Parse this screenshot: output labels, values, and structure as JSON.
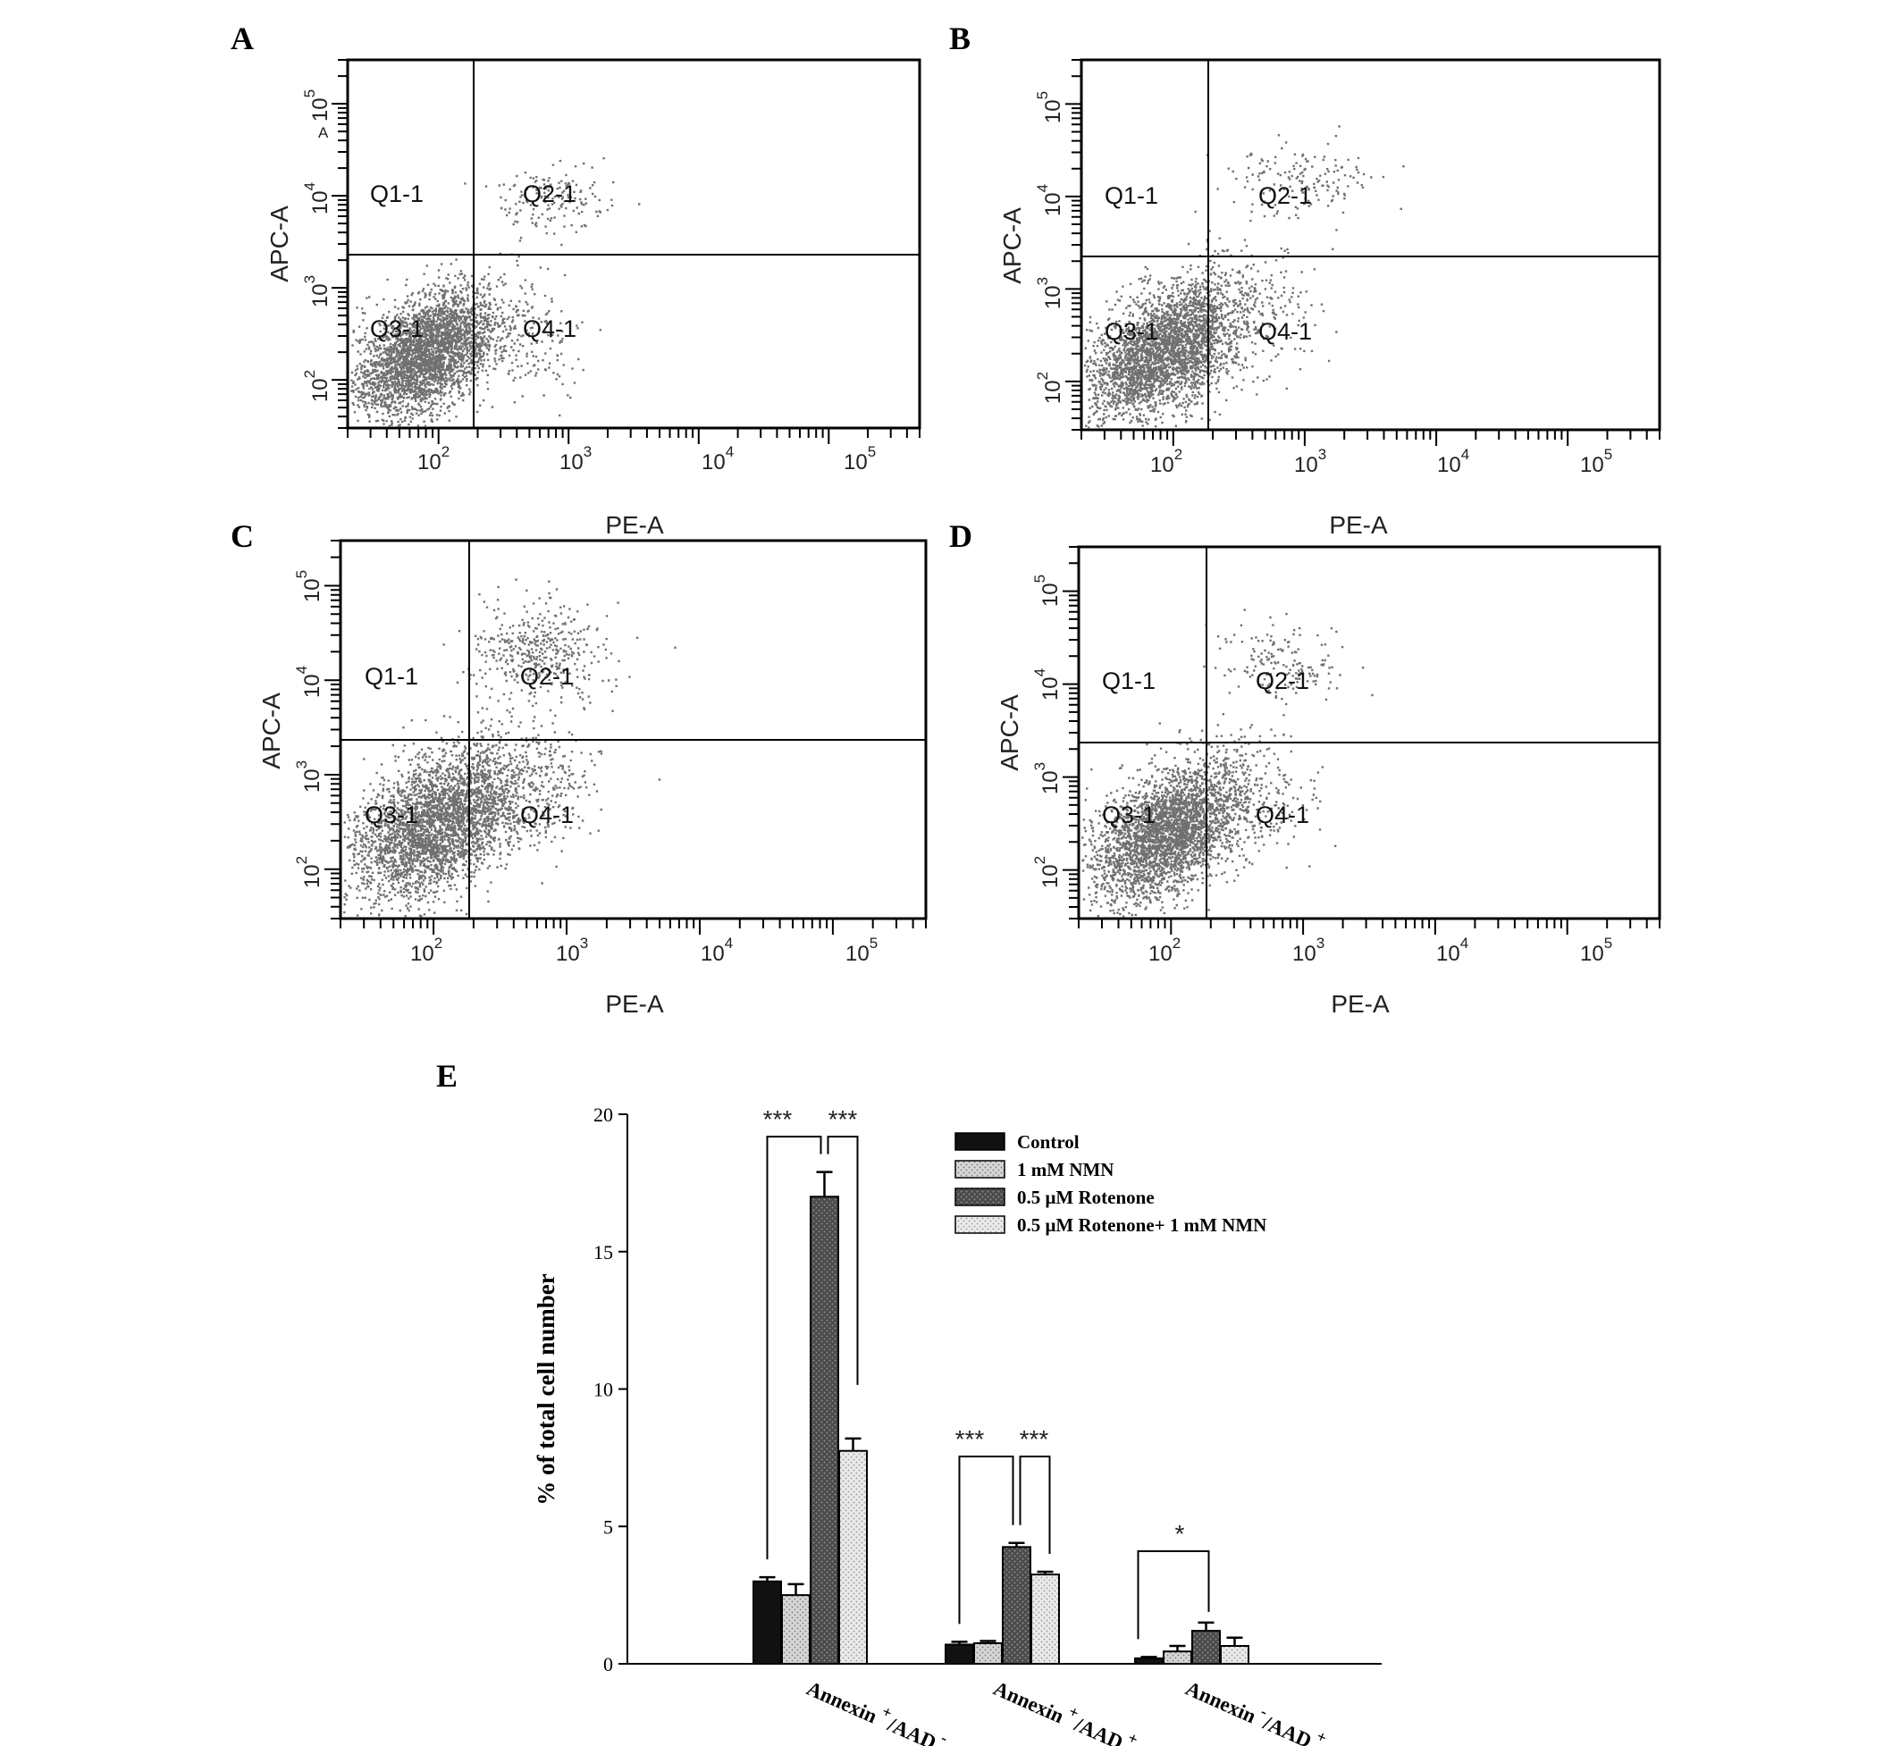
{
  "panels": [
    {
      "letter": "A",
      "x_title": "PE-A",
      "y_title": "APC-A",
      "quadrants": [
        "Q1-1",
        "Q2-1",
        "Q3-1",
        "Q4-1"
      ],
      "x_ticks": [
        {
          "base": "10",
          "exp": "2"
        },
        {
          "base": "10",
          "exp": "3"
        },
        {
          "base": "10",
          "exp": "4"
        },
        {
          "base": "10",
          "exp": "5"
        }
      ],
      "y_ticks": [
        {
          "base": "10",
          "exp": "2"
        },
        {
          "base": "10",
          "exp": "3"
        },
        {
          "base": "10",
          "exp": "4"
        },
        {
          "base": "10",
          "exp": "5"
        }
      ],
      "stray_mark": "A"
    },
    {
      "letter": "B",
      "x_title": "PE-A",
      "y_title": "APC-A",
      "quadrants": [
        "Q1-1",
        "Q2-1",
        "Q3-1",
        "Q4-1"
      ],
      "x_ticks": [
        {
          "base": "10",
          "exp": "2"
        },
        {
          "base": "10",
          "exp": "3"
        },
        {
          "base": "10",
          "exp": "4"
        },
        {
          "base": "10",
          "exp": "5"
        }
      ],
      "y_ticks": [
        {
          "base": "10",
          "exp": "2"
        },
        {
          "base": "10",
          "exp": "3"
        },
        {
          "base": "10",
          "exp": "4"
        },
        {
          "base": "10",
          "exp": "5"
        }
      ]
    },
    {
      "letter": "C",
      "x_title": "PE-A",
      "y_title": "APC-A",
      "quadrants": [
        "Q1-1",
        "Q2-1",
        "Q3-1",
        "Q4-1"
      ],
      "x_ticks": [
        {
          "base": "10",
          "exp": "2"
        },
        {
          "base": "10",
          "exp": "3"
        },
        {
          "base": "10",
          "exp": "4"
        },
        {
          "base": "10",
          "exp": "5"
        }
      ],
      "y_ticks": [
        {
          "base": "10",
          "exp": "2"
        },
        {
          "base": "10",
          "exp": "3"
        },
        {
          "base": "10",
          "exp": "4"
        },
        {
          "base": "10",
          "exp": "5"
        }
      ]
    },
    {
      "letter": "D",
      "x_title": "PE-A",
      "y_title": "APC-A",
      "quadrants": [
        "Q1-1",
        "Q2-1",
        "Q3-1",
        "Q4-1"
      ],
      "x_ticks": [
        {
          "base": "10",
          "exp": "2"
        },
        {
          "base": "10",
          "exp": "3"
        },
        {
          "base": "10",
          "exp": "4"
        },
        {
          "base": "10",
          "exp": "5"
        }
      ],
      "y_ticks": [
        {
          "base": "10",
          "exp": "2"
        },
        {
          "base": "10",
          "exp": "3"
        },
        {
          "base": "10",
          "exp": "4"
        },
        {
          "base": "10",
          "exp": "5"
        }
      ]
    }
  ],
  "chart_data": [
    {
      "type": "scatter",
      "panel": "A",
      "xlabel": "PE-A",
      "ylabel": "APC-A",
      "x_scale": "log",
      "y_scale": "log",
      "xlim": [
        20,
        500000
      ],
      "ylim": [
        30,
        300000
      ],
      "gates": {
        "x": 200,
        "y": 2300
      },
      "quadrant_labels": [
        "Q1-1",
        "Q2-1",
        "Q3-1",
        "Q4-1"
      ],
      "populations": [
        {
          "label": "Q3-1",
          "center": [
            80,
            200
          ],
          "spread_log10": [
            0.28,
            0.3
          ],
          "weight": "dense"
        },
        {
          "label": "Q4-1",
          "center": [
            450,
            280
          ],
          "spread_log10": [
            0.25,
            0.3
          ],
          "weight": "sparse"
        },
        {
          "label": "Q2-1",
          "center": [
            750,
            9000
          ],
          "spread_log10": [
            0.2,
            0.18
          ],
          "weight": "sparse"
        }
      ]
    },
    {
      "type": "scatter",
      "panel": "B",
      "xlabel": "PE-A",
      "ylabel": "APC-A",
      "x_scale": "log",
      "y_scale": "log",
      "xlim": [
        20,
        500000
      ],
      "ylim": [
        30,
        300000
      ],
      "gates": {
        "x": 200,
        "y": 2300
      },
      "quadrant_labels": [
        "Q1-1",
        "Q2-1",
        "Q3-1",
        "Q4-1"
      ],
      "populations": [
        {
          "label": "Q3-1",
          "center": [
            85,
            220
          ],
          "spread_log10": [
            0.3,
            0.32
          ],
          "weight": "dense"
        },
        {
          "label": "Q4-1",
          "center": [
            400,
            500
          ],
          "spread_log10": [
            0.25,
            0.35
          ],
          "weight": "sparse"
        },
        {
          "label": "Q2-1",
          "center": [
            900,
            15000
          ],
          "spread_log10": [
            0.25,
            0.22
          ],
          "weight": "sparse"
        }
      ]
    },
    {
      "type": "scatter",
      "panel": "C",
      "xlabel": "PE-A",
      "ylabel": "APC-A",
      "x_scale": "log",
      "y_scale": "log",
      "xlim": [
        20,
        500000
      ],
      "ylim": [
        30,
        300000
      ],
      "gates": {
        "x": 200,
        "y": 2300
      },
      "quadrant_labels": [
        "Q1-1",
        "Q2-1",
        "Q3-1",
        "Q4-1"
      ],
      "populations": [
        {
          "label": "Q3-1",
          "center": [
            100,
            300
          ],
          "spread_log10": [
            0.32,
            0.35
          ],
          "weight": "dense"
        },
        {
          "label": "Q4-1",
          "center": [
            450,
            700
          ],
          "spread_log10": [
            0.28,
            0.35
          ],
          "weight": "medium"
        },
        {
          "label": "Q2-1",
          "center": [
            600,
            20000
          ],
          "spread_log10": [
            0.25,
            0.25
          ],
          "weight": "medium"
        }
      ]
    },
    {
      "type": "scatter",
      "panel": "D",
      "xlabel": "PE-A",
      "ylabel": "APC-A",
      "x_scale": "log",
      "y_scale": "log",
      "xlim": [
        20,
        500000
      ],
      "ylim": [
        30,
        300000
      ],
      "gates": {
        "x": 200,
        "y": 2300
      },
      "quadrant_labels": [
        "Q1-1",
        "Q2-1",
        "Q3-1",
        "Q4-1"
      ],
      "populations": [
        {
          "label": "Q3-1",
          "center": [
            95,
            260
          ],
          "spread_log10": [
            0.3,
            0.33
          ],
          "weight": "dense"
        },
        {
          "label": "Q4-1",
          "center": [
            420,
            600
          ],
          "spread_log10": [
            0.27,
            0.35
          ],
          "weight": "sparse"
        },
        {
          "label": "Q2-1",
          "center": [
            700,
            18000
          ],
          "spread_log10": [
            0.25,
            0.22
          ],
          "weight": "sparse"
        }
      ]
    },
    {
      "type": "bar",
      "panel": "E",
      "ylabel": "% of total cell number",
      "ylim": [
        0,
        20
      ],
      "yticks": [
        "0",
        "5",
        "10",
        "15",
        "20"
      ],
      "categories": [
        {
          "main": "Annexin",
          "sup1": "+",
          "mid": "/AAD",
          "sup2": "-"
        },
        {
          "main": "Annexin",
          "sup1": "+",
          "mid": "/AAD",
          "sup2": "+"
        },
        {
          "main": "Annexin",
          "sup1": "-",
          "mid": "/AAD",
          "sup2": "+"
        }
      ],
      "series": [
        {
          "name": "Control",
          "values": [
            3.0,
            0.7,
            0.2
          ],
          "errors": [
            0.15,
            0.1,
            0.05
          ],
          "color": "#111111"
        },
        {
          "name": "1 mM NMN",
          "values": [
            2.5,
            0.75,
            0.45
          ],
          "errors": [
            0.4,
            0.08,
            0.2
          ],
          "color": "#cfcfcf"
        },
        {
          "name": "0.5 μM Rotenone",
          "values": [
            17.0,
            4.25,
            1.2
          ],
          "errors": [
            0.9,
            0.15,
            0.3
          ],
          "color": "#555555"
        },
        {
          "name": "0.5 μM Rotenone+ 1 mM NMN",
          "values": [
            7.75,
            3.25,
            0.65
          ],
          "errors": [
            0.45,
            0.1,
            0.3
          ],
          "color": "#e2e2e2"
        }
      ],
      "significance": [
        {
          "group": 0,
          "label": "***"
        },
        {
          "group": 0,
          "label": "***"
        },
        {
          "group": 1,
          "label": "***"
        },
        {
          "group": 1,
          "label": "***"
        },
        {
          "group": 2,
          "label": "*"
        }
      ],
      "legend_position": "top-right"
    }
  ],
  "panel_e_letter": "E",
  "colors": {
    "dots": "#707070",
    "axis": "#000000"
  }
}
